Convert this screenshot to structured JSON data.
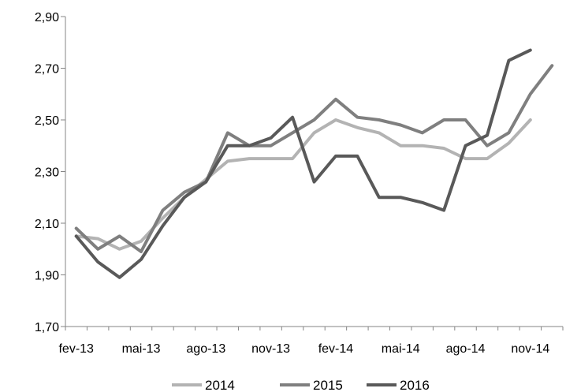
{
  "chart_data": {
    "type": "line",
    "x": [
      "fev-13",
      "mar-13",
      "abr-13",
      "mai-13",
      "jun-13",
      "jul-13",
      "ago-13",
      "set-13",
      "out-13",
      "nov-13",
      "dez-13",
      "jan-14",
      "fev-14",
      "mar-14",
      "abr-14",
      "mai-14",
      "jun-14",
      "jul-14",
      "ago-14",
      "set-14",
      "out-14",
      "nov-14",
      "dez-14"
    ],
    "xtick_labels": [
      "fev-13",
      "mai-13",
      "ago-13",
      "nov-13",
      "fev-14",
      "mai-14",
      "ago-14",
      "nov-14"
    ],
    "ytick_labels": [
      "1,70",
      "1,90",
      "2,10",
      "2,30",
      "2,50",
      "2,70",
      "2,90"
    ],
    "ylim": [
      1.7,
      2.9
    ],
    "grid": false,
    "legend_position": "bottom",
    "series": [
      {
        "name": "2014",
        "color": "#b3b3b3",
        "values": [
          2.05,
          2.04,
          2.0,
          2.03,
          2.12,
          2.2,
          2.27,
          2.34,
          2.35,
          2.35,
          2.35,
          2.45,
          2.5,
          2.47,
          2.45,
          2.4,
          2.4,
          2.39,
          2.35,
          2.35,
          2.41,
          2.5,
          null
        ]
      },
      {
        "name": "2015",
        "color": "#7f7f7f",
        "values": [
          2.08,
          2.0,
          2.05,
          1.99,
          2.15,
          2.22,
          2.26,
          2.45,
          2.4,
          2.4,
          2.45,
          2.5,
          2.58,
          2.51,
          2.5,
          2.48,
          2.45,
          2.5,
          2.5,
          2.4,
          2.45,
          2.6,
          2.71
        ]
      },
      {
        "name": "2016",
        "color": "#595959",
        "values": [
          2.05,
          1.95,
          1.89,
          1.96,
          2.09,
          2.2,
          2.26,
          2.4,
          2.4,
          2.43,
          2.51,
          2.26,
          2.36,
          2.36,
          2.2,
          2.2,
          2.18,
          2.15,
          2.4,
          2.44,
          2.73,
          2.77,
          null
        ]
      }
    ]
  }
}
